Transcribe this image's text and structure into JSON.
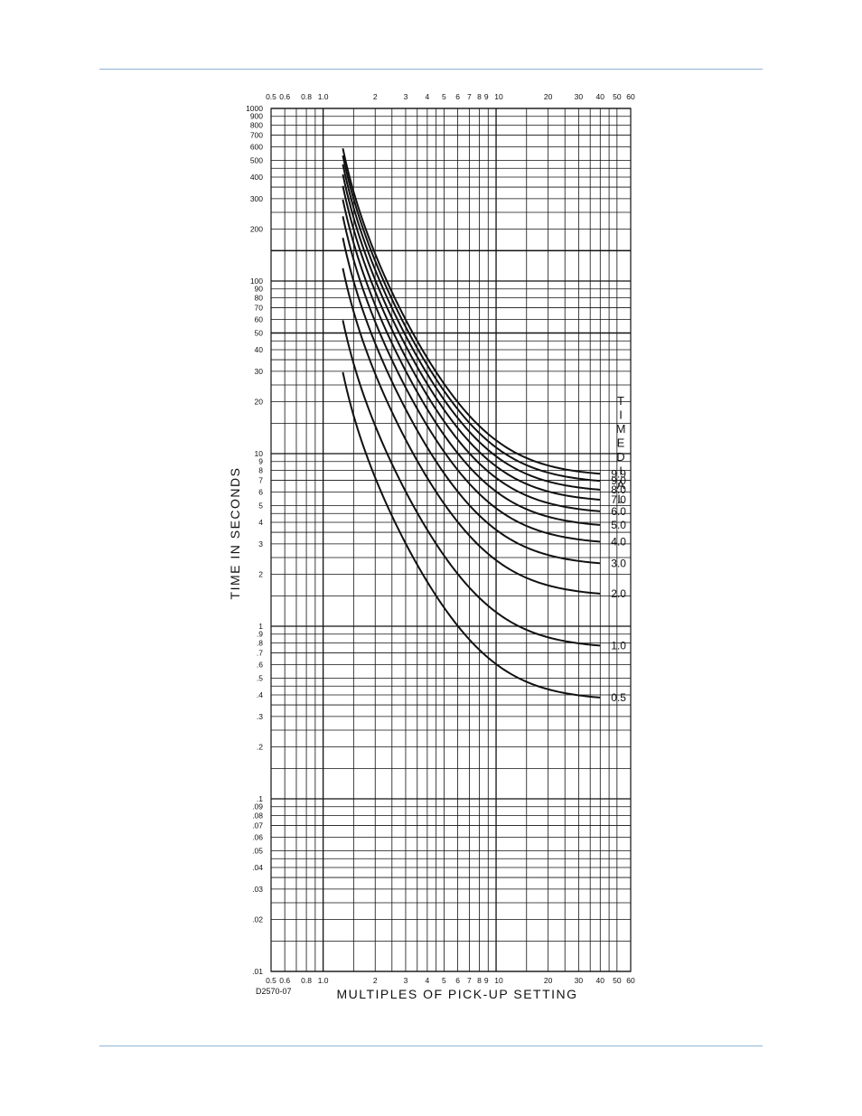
{
  "chart_data": {
    "type": "line",
    "x_scale": "log",
    "y_scale": "log",
    "xlim": [
      0.5,
      60
    ],
    "ylim": [
      0.01,
      1000
    ],
    "grid": true,
    "xlabel": "MULTIPLES OF PICK-UP SETTING",
    "ylabel": "TIME IN SECONDS",
    "legend_title": "TIME DIAL",
    "drawing_number": "D2570-07",
    "x_tick_labels": [
      {
        "v": 0.5,
        "t": "0.5"
      },
      {
        "v": 0.6,
        "t": "0.6"
      },
      {
        "v": 0.8,
        "t": "0.8"
      },
      {
        "v": 1.0,
        "t": "1.0"
      },
      {
        "v": 2,
        "t": "2"
      },
      {
        "v": 3,
        "t": "3"
      },
      {
        "v": 4,
        "t": "4"
      },
      {
        "v": 5,
        "t": "5"
      },
      {
        "v": 6,
        "t": "6"
      },
      {
        "v": 7,
        "t": "7"
      },
      {
        "v": 8,
        "t": "8"
      },
      {
        "v": 9,
        "t": "9"
      },
      {
        "v": 10,
        "t": "10"
      },
      {
        "v": 20,
        "t": "20"
      },
      {
        "v": 30,
        "t": "30"
      },
      {
        "v": 40,
        "t": "40"
      },
      {
        "v": 50,
        "t": "50"
      },
      {
        "v": 60,
        "t": "60"
      }
    ],
    "y_tick_labels": [
      {
        "v": 1000,
        "t": "1000"
      },
      {
        "v": 900,
        "t": "900"
      },
      {
        "v": 800,
        "t": "800"
      },
      {
        "v": 700,
        "t": "700"
      },
      {
        "v": 600,
        "t": "600"
      },
      {
        "v": 500,
        "t": "500"
      },
      {
        "v": 400,
        "t": "400"
      },
      {
        "v": 300,
        "t": "300"
      },
      {
        "v": 200,
        "t": "200"
      },
      {
        "v": 100,
        "t": "100"
      },
      {
        "v": 90,
        "t": "90"
      },
      {
        "v": 80,
        "t": "80"
      },
      {
        "v": 70,
        "t": "70"
      },
      {
        "v": 60,
        "t": "60"
      },
      {
        "v": 50,
        "t": "50"
      },
      {
        "v": 40,
        "t": "40"
      },
      {
        "v": 30,
        "t": "30"
      },
      {
        "v": 20,
        "t": "20"
      },
      {
        "v": 10,
        "t": "10"
      },
      {
        "v": 9,
        "t": "9"
      },
      {
        "v": 8,
        "t": "8"
      },
      {
        "v": 7,
        "t": "7"
      },
      {
        "v": 6,
        "t": "6"
      },
      {
        "v": 5,
        "t": "5"
      },
      {
        "v": 4,
        "t": "4"
      },
      {
        "v": 3,
        "t": "3"
      },
      {
        "v": 2,
        "t": "2"
      },
      {
        "v": 1,
        "t": "1"
      },
      {
        "v": 0.9,
        "t": ".9"
      },
      {
        "v": 0.8,
        "t": ".8"
      },
      {
        "v": 0.7,
        "t": ".7"
      },
      {
        "v": 0.6,
        "t": ".6"
      },
      {
        "v": 0.5,
        "t": ".5"
      },
      {
        "v": 0.4,
        "t": ".4"
      },
      {
        "v": 0.3,
        "t": ".3"
      },
      {
        "v": 0.2,
        "t": ".2"
      },
      {
        "v": 0.1,
        "t": ".1"
      },
      {
        "v": 0.09,
        "t": ".09"
      },
      {
        "v": 0.08,
        "t": ".08"
      },
      {
        "v": 0.07,
        "t": ".07"
      },
      {
        "v": 0.06,
        "t": ".06"
      },
      {
        "v": 0.05,
        "t": ".05"
      },
      {
        "v": 0.04,
        "t": ".04"
      },
      {
        "v": 0.03,
        "t": ".03"
      },
      {
        "v": 0.02,
        "t": ".02"
      },
      {
        "v": 0.01,
        "t": ".01"
      }
    ],
    "curve_model": {
      "type": "inverse",
      "A": 38.33,
      "p": 1.92,
      "B": 0.74,
      "x_start": 1.3,
      "x_end": 40
    },
    "series": [
      {
        "name": "9.9",
        "dial": 9.9
      },
      {
        "name": "9.0",
        "dial": 9.0
      },
      {
        "name": "8.0",
        "dial": 8.0
      },
      {
        "name": "7.0",
        "dial": 7.0
      },
      {
        "name": "6.0",
        "dial": 6.0
      },
      {
        "name": "5.0",
        "dial": 5.0
      },
      {
        "name": "4.0",
        "dial": 4.0
      },
      {
        "name": "3.0",
        "dial": 3.0
      },
      {
        "name": "2.0",
        "dial": 2.0
      },
      {
        "name": "1.0",
        "dial": 1.0
      },
      {
        "name": "0.5",
        "dial": 0.5
      }
    ]
  }
}
